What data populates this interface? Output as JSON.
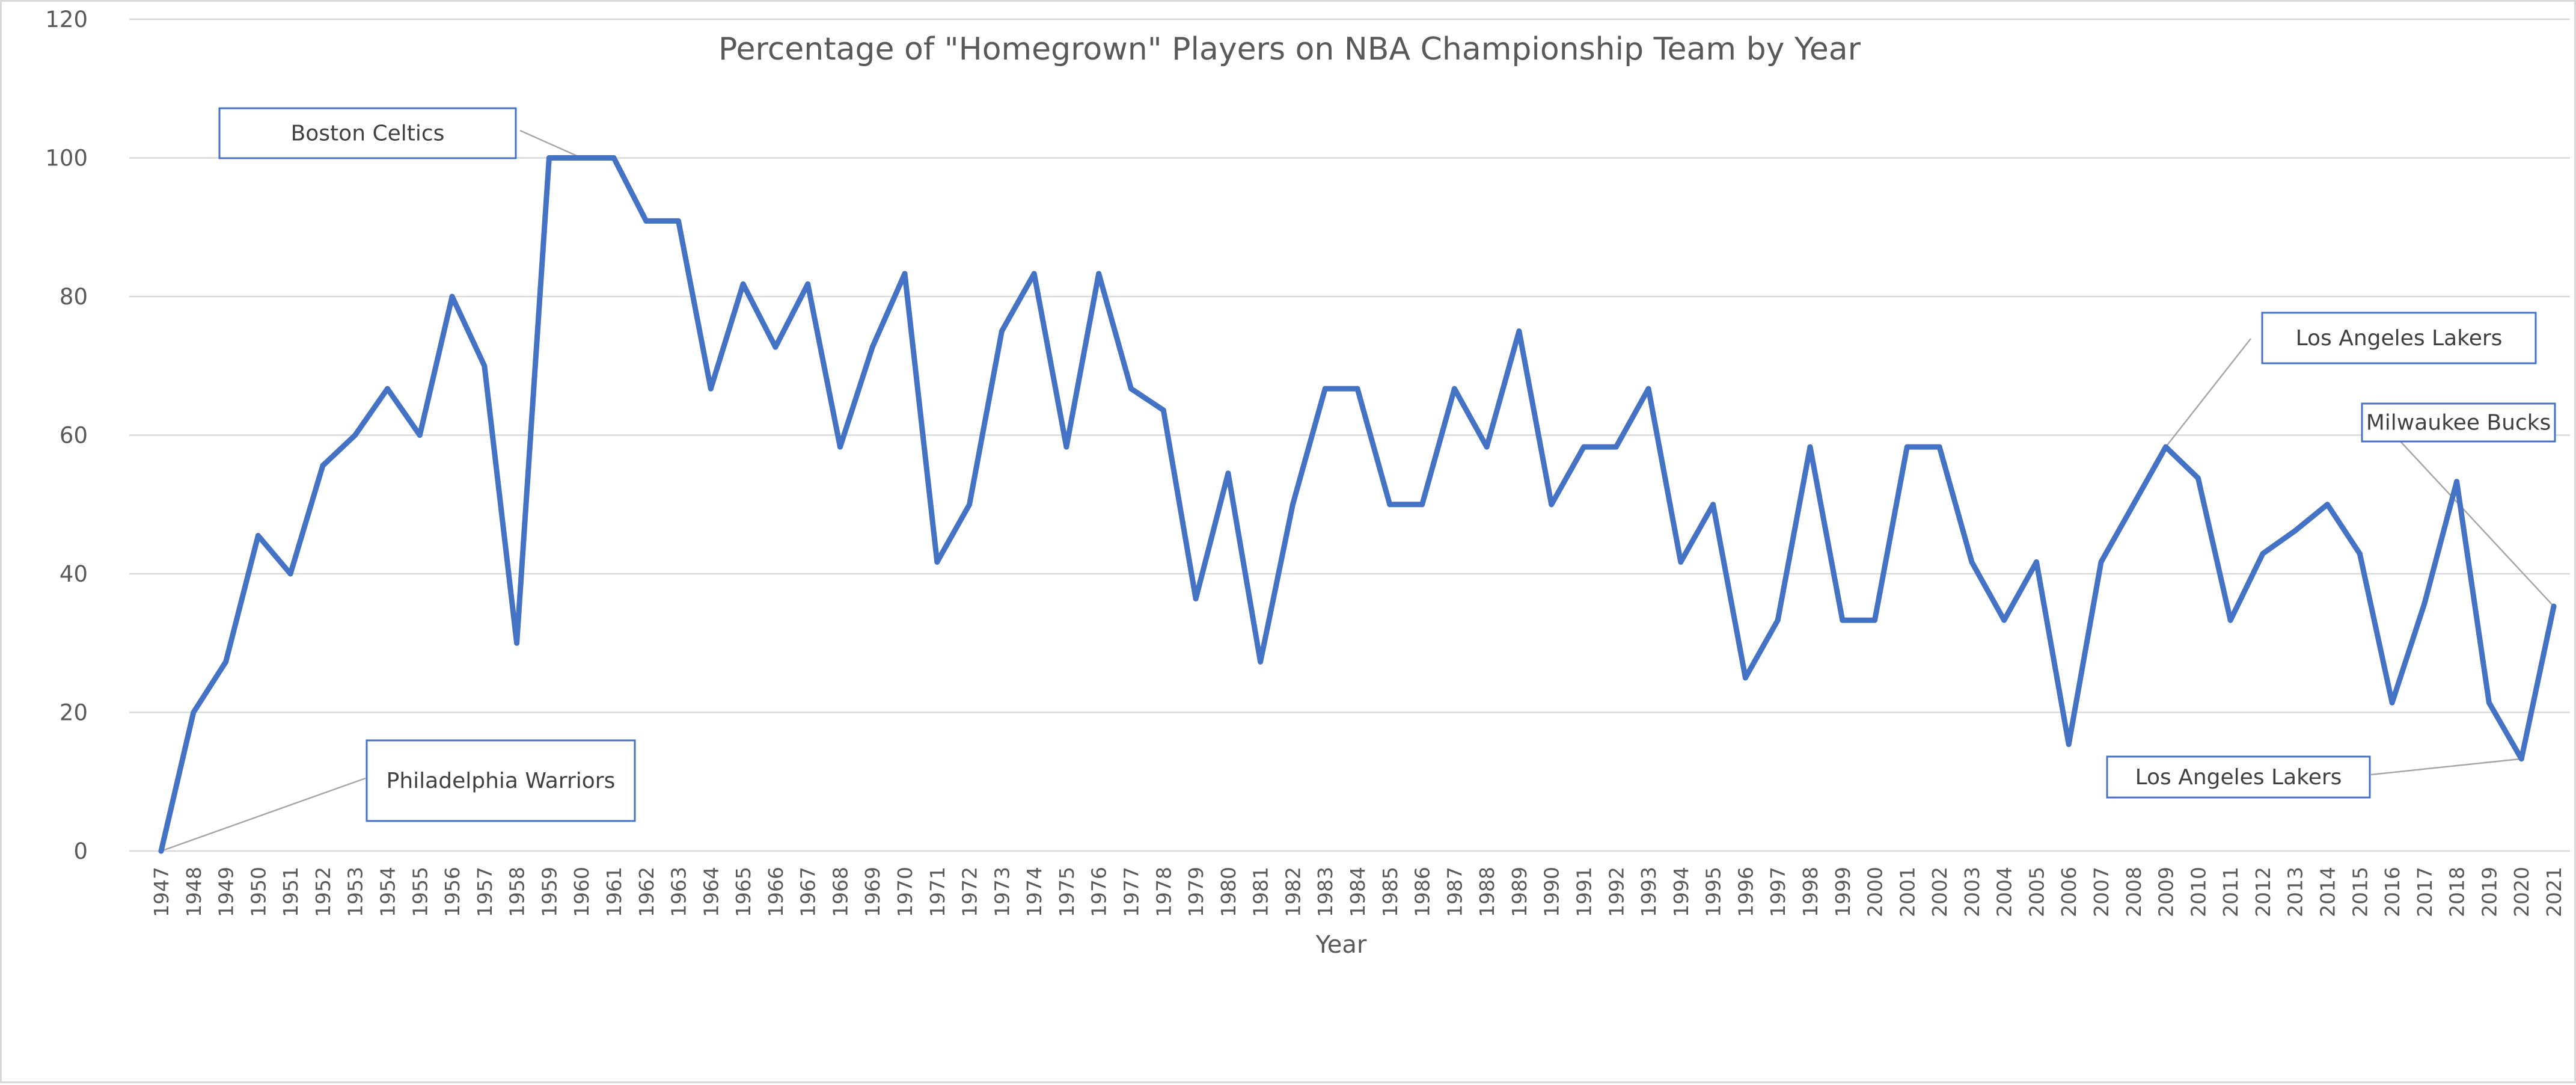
{
  "chart_data": {
    "type": "line",
    "title": "Percentage of \"Homegrown\" Players on NBA Championship Team by Year",
    "xlabel": "Year",
    "ylabel": "",
    "ylim": [
      0,
      120
    ],
    "y_ticks": [
      0,
      20,
      40,
      60,
      80,
      100,
      120
    ],
    "grid": true,
    "legend": "none",
    "line_color": "#4472c4",
    "categories": [
      "1947",
      "1948",
      "1949",
      "1950",
      "1951",
      "1952",
      "1953",
      "1954",
      "1955",
      "1956",
      "1957",
      "1958",
      "1959",
      "1960",
      "1961",
      "1962",
      "1963",
      "1964",
      "1965",
      "1966",
      "1967",
      "1968",
      "1969",
      "1970",
      "1971",
      "1972",
      "1973",
      "1974",
      "1975",
      "1976",
      "1977",
      "1978",
      "1979",
      "1980",
      "1981",
      "1982",
      "1983",
      "1984",
      "1985",
      "1986",
      "1987",
      "1988",
      "1989",
      "1990",
      "1991",
      "1992",
      "1993",
      "1994",
      "1995",
      "1996",
      "1997",
      "1998",
      "1999",
      "2000",
      "2001",
      "2002",
      "2003",
      "2004",
      "2005",
      "2006",
      "2007",
      "2008",
      "2009",
      "2010",
      "2011",
      "2012",
      "2013",
      "2014",
      "2015",
      "2016",
      "2017",
      "2018",
      "2019",
      "2020",
      "2021"
    ],
    "series": [
      {
        "values": [
          0,
          20,
          27.3,
          45.5,
          40,
          55.6,
          60,
          66.7,
          60,
          80,
          70,
          30,
          100,
          100,
          100,
          90.9,
          90.9,
          66.7,
          81.8,
          72.7,
          81.8,
          58.3,
          72.7,
          83.3,
          41.7,
          50,
          75,
          83.3,
          58.3,
          83.3,
          66.7,
          63.6,
          36.4,
          54.5,
          27.3,
          50,
          66.7,
          66.7,
          50,
          50,
          66.7,
          58.3,
          75,
          50,
          58.3,
          58.3,
          66.7,
          41.7,
          50,
          25,
          33.3,
          58.3,
          33.3,
          33.3,
          58.3,
          58.3,
          41.7,
          33.3,
          41.7,
          15.4,
          41.7,
          50,
          58.3,
          53.8,
          33.3,
          42.9,
          46.2,
          50,
          42.9,
          21.4,
          35.7,
          53.3,
          21.4,
          13.3,
          35.3
        ]
      }
    ],
    "annotations": [
      {
        "text": "Boston Celtics",
        "year": "1960"
      },
      {
        "text": "Philadelphia Warriors",
        "year": "1947"
      },
      {
        "text": "Los Angeles Lakers",
        "year": "2009"
      },
      {
        "text": "Milwaukee Bucks",
        "year": "2021"
      },
      {
        "text": "Los Angeles Lakers",
        "year": "2020"
      }
    ]
  }
}
